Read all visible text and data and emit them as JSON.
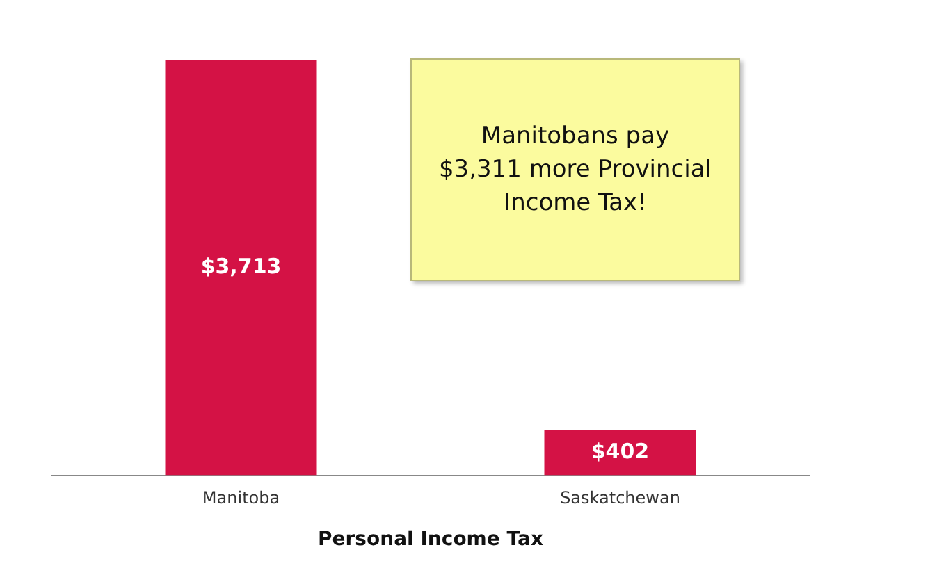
{
  "chart_data": {
    "type": "bar",
    "xlabel": "Personal Income Tax",
    "categories": [
      "Manitoba",
      "Saskatchewan"
    ],
    "values": [
      3713,
      402
    ],
    "value_labels": [
      "$3,713",
      "$402"
    ],
    "color": "#d41245",
    "annotations": [
      "Manitobans pay $3,311 more Provincial Income Tax!"
    ],
    "grid": false,
    "legend": false
  }
}
